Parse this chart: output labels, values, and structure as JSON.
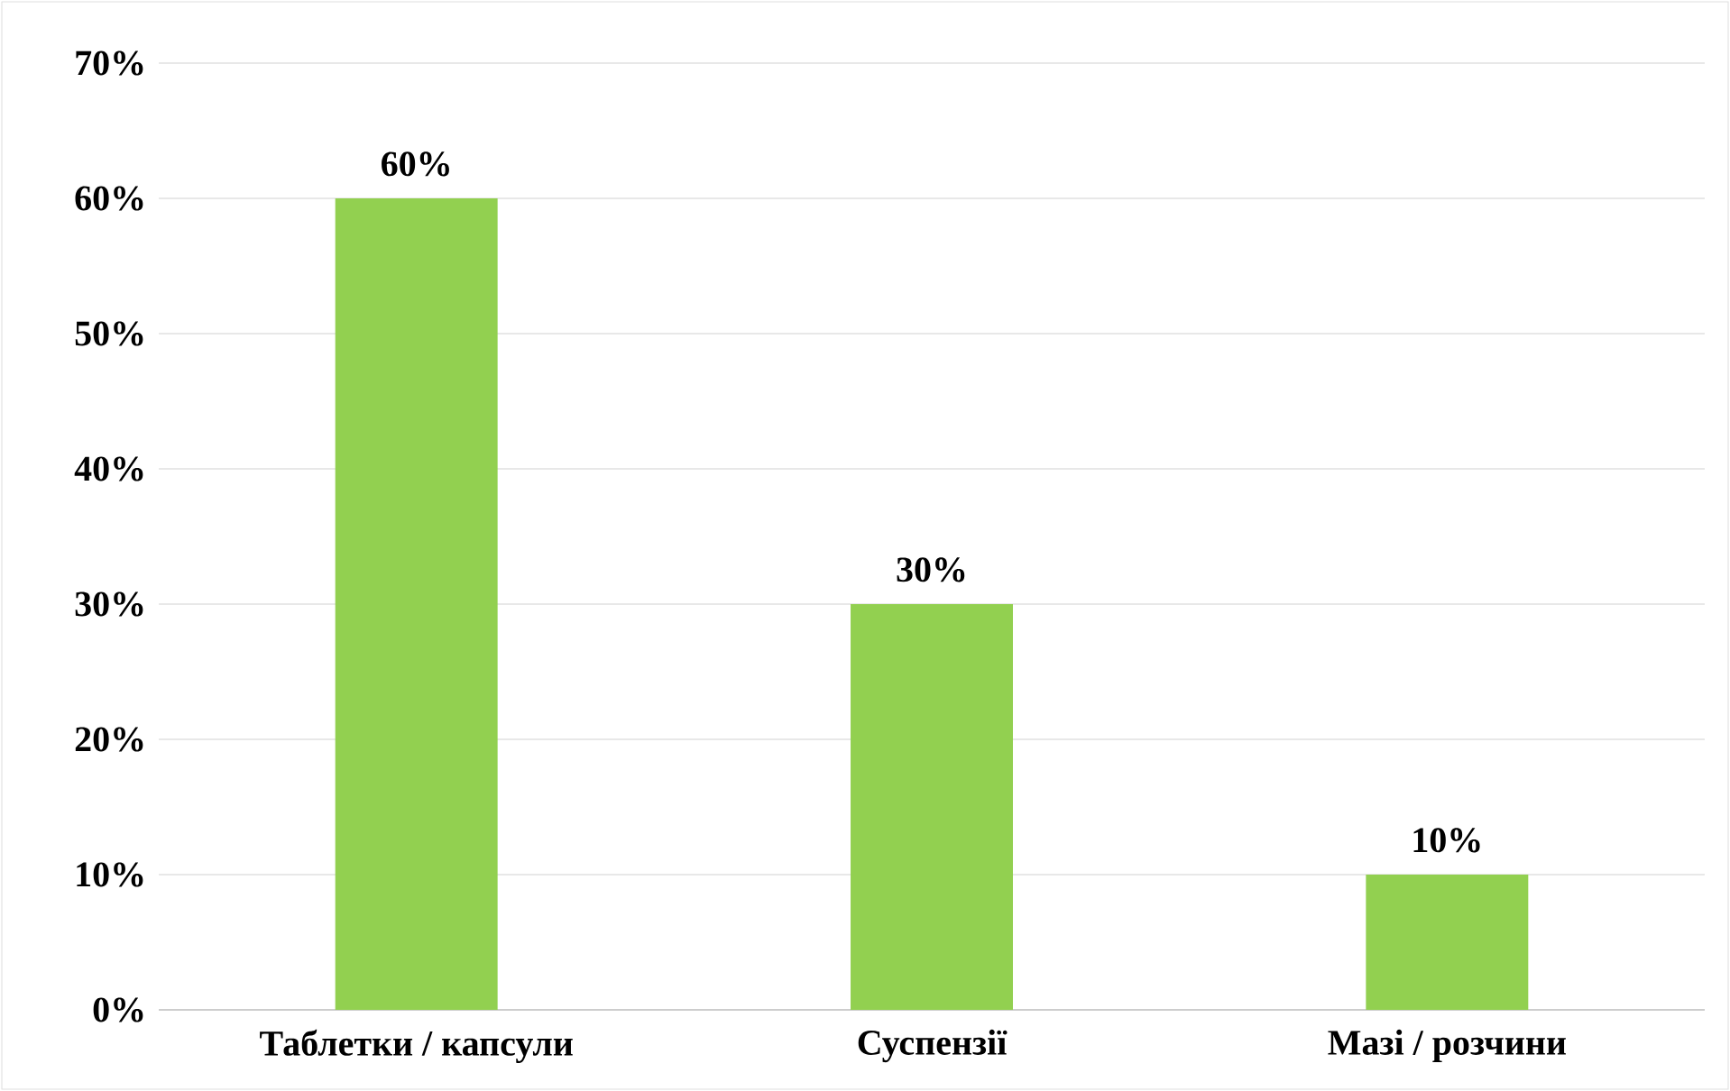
{
  "chart_data": {
    "type": "bar",
    "categories": [
      "Таблетки / капсули",
      "Суспензії",
      "Мазі / розчини"
    ],
    "values": [
      60,
      30,
      10
    ],
    "value_labels": [
      "60%",
      "30%",
      "10%"
    ],
    "color": "#92d050",
    "ylim": [
      0,
      70
    ],
    "yticks": [
      {
        "value": 0,
        "label": "0%"
      },
      {
        "value": 10,
        "label": "10%"
      },
      {
        "value": 20,
        "label": "20%"
      },
      {
        "value": 30,
        "label": "30%"
      },
      {
        "value": 40,
        "label": "40%"
      },
      {
        "value": 50,
        "label": "50%"
      },
      {
        "value": 60,
        "label": "60%"
      },
      {
        "value": 70,
        "label": "70%"
      }
    ],
    "grid": "y"
  }
}
